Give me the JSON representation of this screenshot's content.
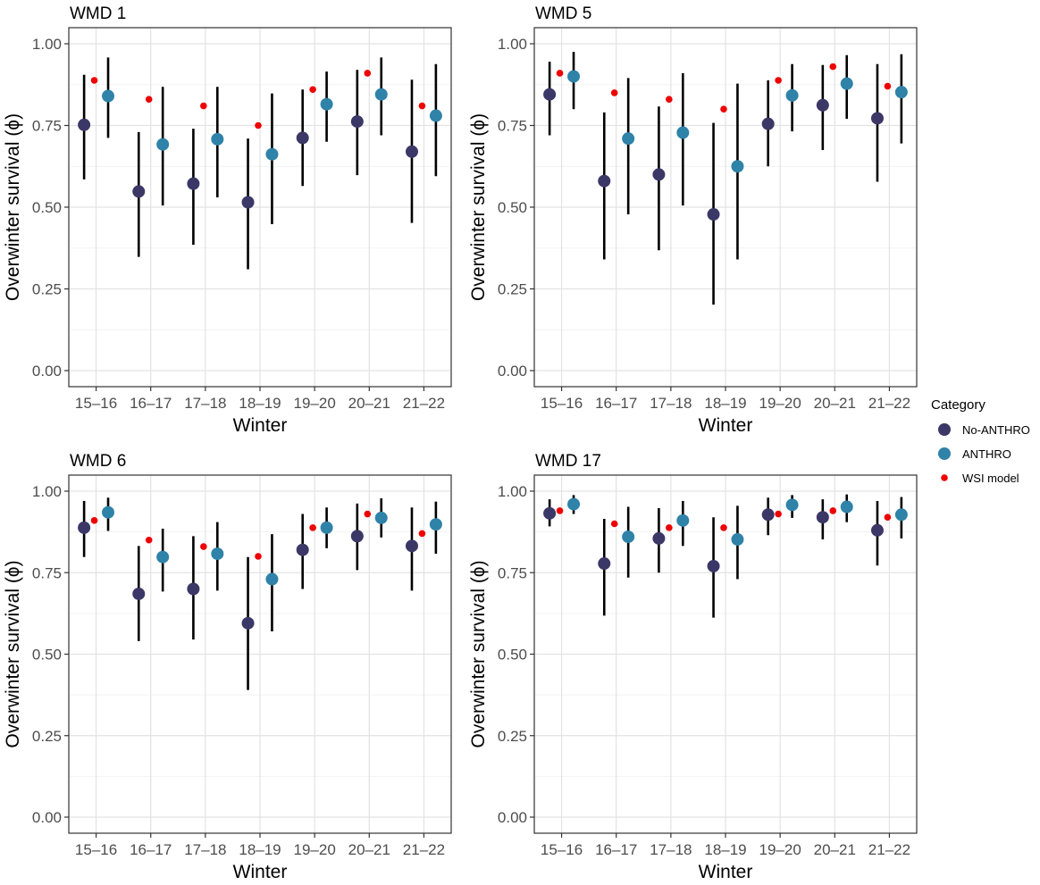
{
  "chart_data": {
    "type": "scatter",
    "subtype": "point-range",
    "xlabel": "Winter",
    "ylabel": "Overwinter survival (ϕ)",
    "ylim": [
      0,
      1
    ],
    "y_ticks": [
      "0.00",
      "0.25",
      "0.50",
      "0.75",
      "1.00"
    ],
    "categories": [
      "15–16",
      "16–17",
      "17–18",
      "18–19",
      "19–20",
      "20–21",
      "21–22"
    ],
    "legend": {
      "title": "Category",
      "position": "right",
      "items": [
        {
          "label": "No-ANTHRO",
          "color": "#3b3766",
          "marker": "circle"
        },
        {
          "label": "ANTHRO",
          "color": "#2f82a8",
          "marker": "circle"
        },
        {
          "label": "WSI model",
          "color": "#ee0000",
          "marker": "small-circle"
        }
      ]
    },
    "panels": [
      {
        "title": "WMD 1",
        "no_anthro": [
          {
            "est": 0.752,
            "lo": 0.585,
            "hi": 0.905
          },
          {
            "est": 0.548,
            "lo": 0.348,
            "hi": 0.73
          },
          {
            "est": 0.572,
            "lo": 0.385,
            "hi": 0.74
          },
          {
            "est": 0.515,
            "lo": 0.31,
            "hi": 0.71
          },
          {
            "est": 0.712,
            "lo": 0.565,
            "hi": 0.86
          },
          {
            "est": 0.762,
            "lo": 0.598,
            "hi": 0.92
          },
          {
            "est": 0.67,
            "lo": 0.452,
            "hi": 0.89
          }
        ],
        "anthro": [
          {
            "est": 0.84,
            "lo": 0.712,
            "hi": 0.958
          },
          {
            "est": 0.692,
            "lo": 0.505,
            "hi": 0.868
          },
          {
            "est": 0.708,
            "lo": 0.53,
            "hi": 0.868
          },
          {
            "est": 0.662,
            "lo": 0.448,
            "hi": 0.848
          },
          {
            "est": 0.815,
            "lo": 0.7,
            "hi": 0.915
          },
          {
            "est": 0.845,
            "lo": 0.72,
            "hi": 0.958
          },
          {
            "est": 0.78,
            "lo": 0.595,
            "hi": 0.938
          }
        ],
        "wsi": [
          0.888,
          0.83,
          0.81,
          0.75,
          0.86,
          0.91,
          0.81
        ]
      },
      {
        "title": "WMD 5",
        "no_anthro": [
          {
            "est": 0.845,
            "lo": 0.72,
            "hi": 0.945
          },
          {
            "est": 0.58,
            "lo": 0.34,
            "hi": 0.79
          },
          {
            "est": 0.6,
            "lo": 0.368,
            "hi": 0.808
          },
          {
            "est": 0.478,
            "lo": 0.202,
            "hi": 0.758
          },
          {
            "est": 0.755,
            "lo": 0.625,
            "hi": 0.888
          },
          {
            "est": 0.812,
            "lo": 0.675,
            "hi": 0.935
          },
          {
            "est": 0.772,
            "lo": 0.578,
            "hi": 0.938
          }
        ],
        "anthro": [
          {
            "est": 0.9,
            "lo": 0.8,
            "hi": 0.975
          },
          {
            "est": 0.71,
            "lo": 0.478,
            "hi": 0.895
          },
          {
            "est": 0.728,
            "lo": 0.505,
            "hi": 0.91
          },
          {
            "est": 0.625,
            "lo": 0.34,
            "hi": 0.878
          },
          {
            "est": 0.842,
            "lo": 0.732,
            "hi": 0.938
          },
          {
            "est": 0.878,
            "lo": 0.77,
            "hi": 0.965
          },
          {
            "est": 0.852,
            "lo": 0.695,
            "hi": 0.968
          }
        ],
        "wsi": [
          0.91,
          0.85,
          0.83,
          0.8,
          0.888,
          0.93,
          0.87
        ]
      },
      {
        "title": "WMD 6",
        "no_anthro": [
          {
            "est": 0.888,
            "lo": 0.798,
            "hi": 0.97
          },
          {
            "est": 0.685,
            "lo": 0.54,
            "hi": 0.832
          },
          {
            "est": 0.7,
            "lo": 0.545,
            "hi": 0.862
          },
          {
            "est": 0.595,
            "lo": 0.39,
            "hi": 0.798
          },
          {
            "est": 0.82,
            "lo": 0.7,
            "hi": 0.93
          },
          {
            "est": 0.862,
            "lo": 0.758,
            "hi": 0.962
          },
          {
            "est": 0.832,
            "lo": 0.695,
            "hi": 0.95
          }
        ],
        "anthro": [
          {
            "est": 0.935,
            "lo": 0.878,
            "hi": 0.98
          },
          {
            "est": 0.798,
            "lo": 0.692,
            "hi": 0.885
          },
          {
            "est": 0.808,
            "lo": 0.695,
            "hi": 0.905
          },
          {
            "est": 0.73,
            "lo": 0.57,
            "hi": 0.868
          },
          {
            "est": 0.888,
            "lo": 0.825,
            "hi": 0.95
          },
          {
            "est": 0.918,
            "lo": 0.858,
            "hi": 0.978
          },
          {
            "est": 0.898,
            "lo": 0.808,
            "hi": 0.968
          }
        ],
        "wsi": [
          0.91,
          0.85,
          0.83,
          0.8,
          0.888,
          0.93,
          0.87
        ]
      },
      {
        "title": "WMD 17",
        "no_anthro": [
          {
            "est": 0.932,
            "lo": 0.892,
            "hi": 0.975
          },
          {
            "est": 0.778,
            "lo": 0.618,
            "hi": 0.915
          },
          {
            "est": 0.855,
            "lo": 0.75,
            "hi": 0.948
          },
          {
            "est": 0.77,
            "lo": 0.612,
            "hi": 0.92
          },
          {
            "est": 0.928,
            "lo": 0.865,
            "hi": 0.98
          },
          {
            "est": 0.92,
            "lo": 0.852,
            "hi": 0.975
          },
          {
            "est": 0.88,
            "lo": 0.772,
            "hi": 0.97
          }
        ],
        "anthro": [
          {
            "est": 0.96,
            "lo": 0.93,
            "hi": 0.988
          },
          {
            "est": 0.86,
            "lo": 0.735,
            "hi": 0.952
          },
          {
            "est": 0.91,
            "lo": 0.832,
            "hi": 0.97
          },
          {
            "est": 0.852,
            "lo": 0.73,
            "hi": 0.955
          },
          {
            "est": 0.958,
            "lo": 0.918,
            "hi": 0.988
          },
          {
            "est": 0.952,
            "lo": 0.905,
            "hi": 0.99
          },
          {
            "est": 0.928,
            "lo": 0.855,
            "hi": 0.982
          }
        ],
        "wsi": [
          0.94,
          0.9,
          0.888,
          0.888,
          0.93,
          0.94,
          0.92
        ]
      }
    ]
  }
}
